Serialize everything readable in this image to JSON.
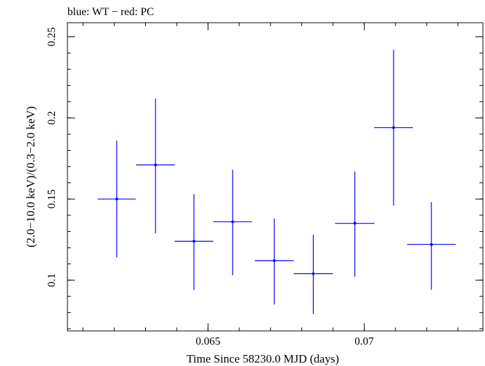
{
  "chart_data": {
    "type": "scatter",
    "title": "blue: WT − red: PC",
    "xlabel": "Time Since 58230.0 MJD (days)",
    "ylabel": "(2.0−10.0 keV)/(0.3−2.0 keV)",
    "xlim": [
      0.0605,
      0.0738
    ],
    "ylim": [
      0.0687,
      0.2587
    ],
    "x_ticks": [
      {
        "value": 0.065,
        "label": "0.065"
      },
      {
        "value": 0.07,
        "label": "0.07"
      }
    ],
    "y_ticks": [
      {
        "value": 0.1,
        "label": "0.1"
      },
      {
        "value": 0.15,
        "label": "0.15"
      },
      {
        "value": 0.2,
        "label": "0.2"
      },
      {
        "value": 0.25,
        "label": "0.25"
      }
    ],
    "x_minor_step": 0.001,
    "y_minor_step": 0.01,
    "grid": false,
    "series": [
      {
        "color": "#0000ff",
        "points": [
          {
            "x": 0.06208,
            "xerr": 0.00061,
            "y": 0.15,
            "ylo": 0.114,
            "yhi": 0.186
          },
          {
            "x": 0.06332,
            "xerr": 0.00062,
            "y": 0.171,
            "ylo": 0.129,
            "yhi": 0.212
          },
          {
            "x": 0.06455,
            "xerr": 0.00062,
            "y": 0.124,
            "ylo": 0.094,
            "yhi": 0.153
          },
          {
            "x": 0.06579,
            "xerr": 0.00062,
            "y": 0.136,
            "ylo": 0.103,
            "yhi": 0.168
          },
          {
            "x": 0.06712,
            "xerr": 0.00062,
            "y": 0.112,
            "ylo": 0.085,
            "yhi": 0.138
          },
          {
            "x": 0.06837,
            "xerr": 0.00063,
            "y": 0.104,
            "ylo": 0.079,
            "yhi": 0.128
          },
          {
            "x": 0.0697,
            "xerr": 0.00063,
            "y": 0.135,
            "ylo": 0.102,
            "yhi": 0.167
          },
          {
            "x": 0.07094,
            "xerr": 0.00062,
            "y": 0.194,
            "ylo": 0.146,
            "yhi": 0.242
          },
          {
            "x": 0.07215,
            "xerr": 0.00078,
            "y": 0.122,
            "ylo": 0.094,
            "yhi": 0.148
          }
        ]
      }
    ]
  }
}
